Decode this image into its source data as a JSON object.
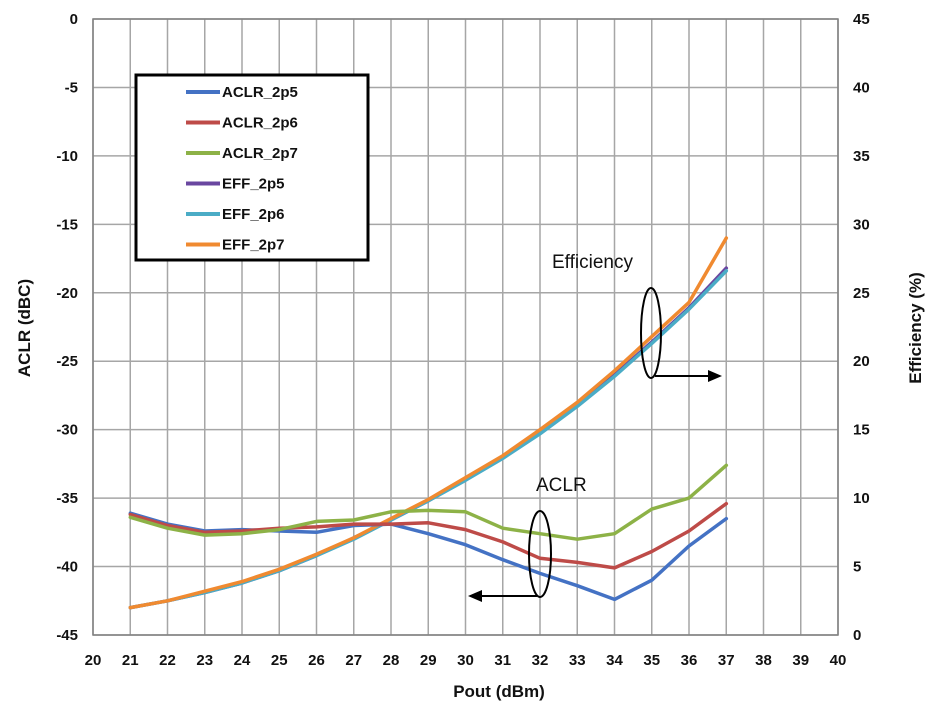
{
  "chart_data": {
    "type": "line",
    "xlabel": "Pout (dBm)",
    "ylabel": "ACLR (dBC)",
    "y2label": "Efficiency (%)",
    "xlim": [
      20,
      40
    ],
    "ylim": [
      -45,
      0
    ],
    "y2lim": [
      0,
      45
    ],
    "x_ticks": [
      20,
      21,
      22,
      23,
      24,
      25,
      26,
      27,
      28,
      29,
      30,
      31,
      32,
      33,
      34,
      35,
      36,
      37,
      38,
      39,
      40
    ],
    "y_ticks": [
      0,
      -5,
      -10,
      -15,
      -20,
      -25,
      -30,
      -35,
      -40,
      -45
    ],
    "y2_ticks": [
      45,
      40,
      35,
      30,
      25,
      20,
      15,
      10,
      5,
      0
    ],
    "grid": true,
    "legend_position": "top-left",
    "x": [
      21,
      22,
      23,
      24,
      25,
      26,
      27,
      28,
      29,
      30,
      31,
      32,
      33,
      34,
      35,
      36,
      37
    ],
    "series": [
      {
        "name": "ACLR_2p5",
        "axis": "left",
        "color": "#4472c4",
        "values": [
          -36.1,
          -36.9,
          -37.4,
          -37.3,
          -37.4,
          -37.5,
          -37.0,
          -36.9,
          -37.6,
          -38.4,
          -39.5,
          -40.5,
          -41.4,
          -42.4,
          -41.0,
          -38.5,
          -36.5
        ]
      },
      {
        "name": "ACLR_2p6",
        "axis": "left",
        "color": "#be4b48",
        "values": [
          -36.2,
          -37.0,
          -37.5,
          -37.4,
          -37.2,
          -37.1,
          -36.9,
          -36.9,
          -36.8,
          -37.3,
          -38.2,
          -39.4,
          -39.7,
          -40.1,
          -38.9,
          -37.4,
          -35.4
        ]
      },
      {
        "name": "ACLR_2p7",
        "axis": "left",
        "color": "#8db247",
        "values": [
          -36.4,
          -37.2,
          -37.7,
          -37.6,
          -37.3,
          -36.7,
          -36.6,
          -36.0,
          -35.9,
          -36.0,
          -37.2,
          -37.6,
          -38.0,
          -37.6,
          -35.8,
          -35.0,
          -32.6
        ]
      },
      {
        "name": "EFF_2p5",
        "axis": "right",
        "color": "#6a47a0",
        "values": [
          2.0,
          2.5,
          3.1,
          3.8,
          4.7,
          5.8,
          7.1,
          8.4,
          9.8,
          11.4,
          13.0,
          14.8,
          16.8,
          19.0,
          21.4,
          23.9,
          26.8
        ]
      },
      {
        "name": "EFF_2p6",
        "axis": "right",
        "color": "#4bacc6",
        "values": [
          2.0,
          2.5,
          3.1,
          3.8,
          4.7,
          5.8,
          7.0,
          8.4,
          9.8,
          11.3,
          12.9,
          14.7,
          16.7,
          18.9,
          21.3,
          23.8,
          26.6
        ]
      },
      {
        "name": "EFF_2p7",
        "axis": "right",
        "color": "#f08a30",
        "values": [
          2.0,
          2.5,
          3.2,
          3.9,
          4.8,
          5.9,
          7.1,
          8.5,
          9.9,
          11.5,
          13.1,
          15.0,
          17.0,
          19.3,
          21.8,
          24.3,
          29.0
        ]
      }
    ],
    "annotations": [
      {
        "text": "Efficiency",
        "target": "EFF",
        "arrow": "right"
      },
      {
        "text": "ACLR",
        "target": "ACLR",
        "arrow": "left"
      }
    ]
  }
}
